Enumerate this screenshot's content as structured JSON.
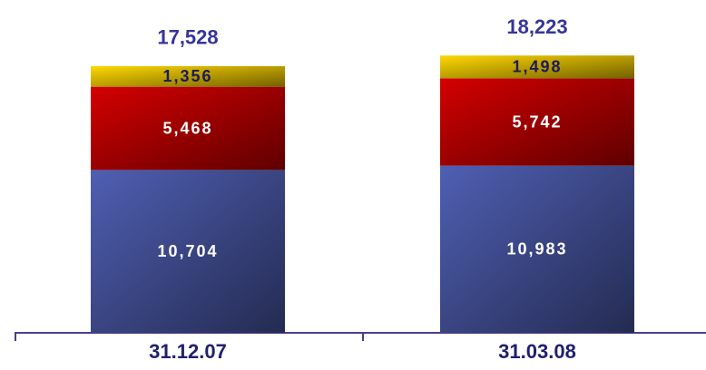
{
  "chart_data": {
    "type": "stacked_bar",
    "categories": [
      "31.12.07",
      "31.03.08"
    ],
    "series": [
      {
        "color": "#4f5fb3",
        "values": [
          10704,
          10983
        ],
        "value_labels": [
          "10,704",
          "10,983"
        ]
      },
      {
        "color": "#d40000",
        "values": [
          5468,
          5742
        ],
        "value_labels": [
          "5,468",
          "5,742"
        ]
      },
      {
        "color": "#ffd800",
        "values": [
          1356,
          1498
        ],
        "value_labels": [
          "1,356",
          "1,498"
        ]
      }
    ],
    "totals": [
      17528,
      18223
    ],
    "total_labels": [
      "17,528",
      "18,223"
    ],
    "ylim": [
      0,
      20000
    ]
  }
}
